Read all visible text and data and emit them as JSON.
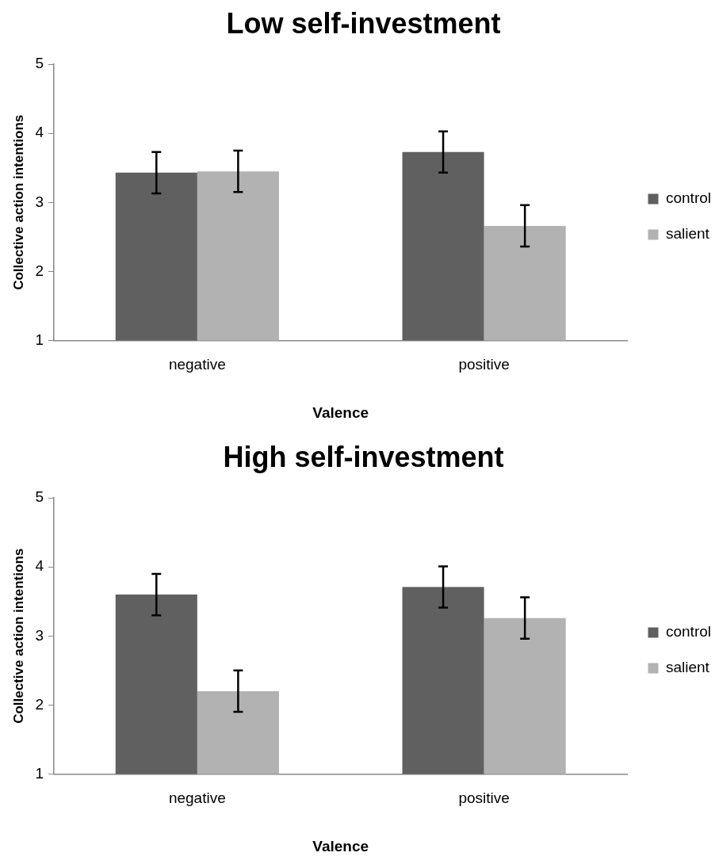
{
  "chart_data": [
    {
      "type": "bar",
      "title": "Low self-investment",
      "xlabel": "Valence",
      "ylabel": "Collective action intentions",
      "categories": [
        "negative",
        "positive"
      ],
      "series": [
        {
          "name": "control",
          "color": "#606060",
          "values": [
            3.43,
            3.73
          ],
          "errors": [
            0.3,
            0.3
          ]
        },
        {
          "name": "salient",
          "color": "#b2b2b2",
          "values": [
            3.45,
            2.66
          ],
          "errors": [
            0.3,
            0.3
          ]
        }
      ],
      "ylim": [
        1,
        5
      ],
      "yticks": [
        1,
        2,
        3,
        4,
        5
      ],
      "grid": false,
      "legend": "right"
    },
    {
      "type": "bar",
      "title": "High self-investment",
      "xlabel": "Valence",
      "ylabel": "Collective action intentions",
      "categories": [
        "negative",
        "positive"
      ],
      "series": [
        {
          "name": "control",
          "color": "#606060",
          "values": [
            3.6,
            3.71
          ],
          "errors": [
            0.3,
            0.3
          ]
        },
        {
          "name": "salient",
          "color": "#b2b2b2",
          "values": [
            2.2,
            3.26
          ],
          "errors": [
            0.3,
            0.3
          ]
        }
      ],
      "ylim": [
        1,
        5
      ],
      "yticks": [
        1,
        2,
        3,
        4,
        5
      ],
      "grid": false,
      "legend": "right"
    }
  ]
}
